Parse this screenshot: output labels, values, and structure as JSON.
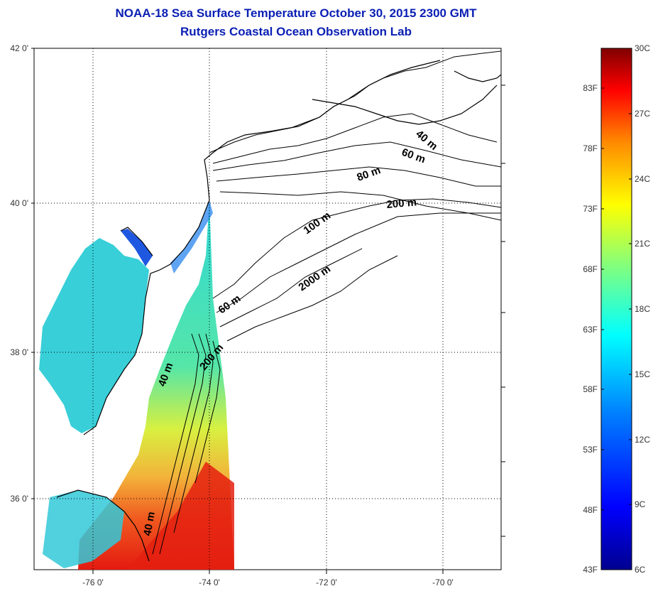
{
  "title": {
    "line1": "NOAA-18 Sea Surface Temperature October 30, 2015 2300 GMT",
    "line2": "Rutgers Coastal Ocean Observation Lab"
  },
  "map": {
    "lat_labels": [
      "42 0'",
      "40 0'",
      "38 0'",
      "36 0'"
    ],
    "lon_labels": [
      "-76 0'",
      "-74 0'",
      "-72 0'",
      "-70 0'"
    ],
    "contour_labels": [
      "40 m",
      "60 m",
      "80 m",
      "200 m",
      "100 m",
      "2000 m",
      "60 m",
      "200 m",
      "40 m",
      "40 m"
    ]
  },
  "colorbar": {
    "fahrenheit": [
      "83F",
      "78F",
      "73F",
      "68F",
      "63F",
      "58F",
      "53F",
      "48F",
      "43F"
    ],
    "celsius": [
      "30C",
      "27C",
      "24C",
      "21C",
      "18C",
      "15C",
      "12C",
      "9C",
      "6C"
    ],
    "colors": {
      "max": "#800000",
      "red": "#ff0000",
      "orange": "#ff8a00",
      "yellow": "#ffff00",
      "green": "#80ff80",
      "cyan": "#00ffff",
      "blue": "#0080ff",
      "deep_blue": "#0000ff",
      "min": "#00008f"
    }
  }
}
